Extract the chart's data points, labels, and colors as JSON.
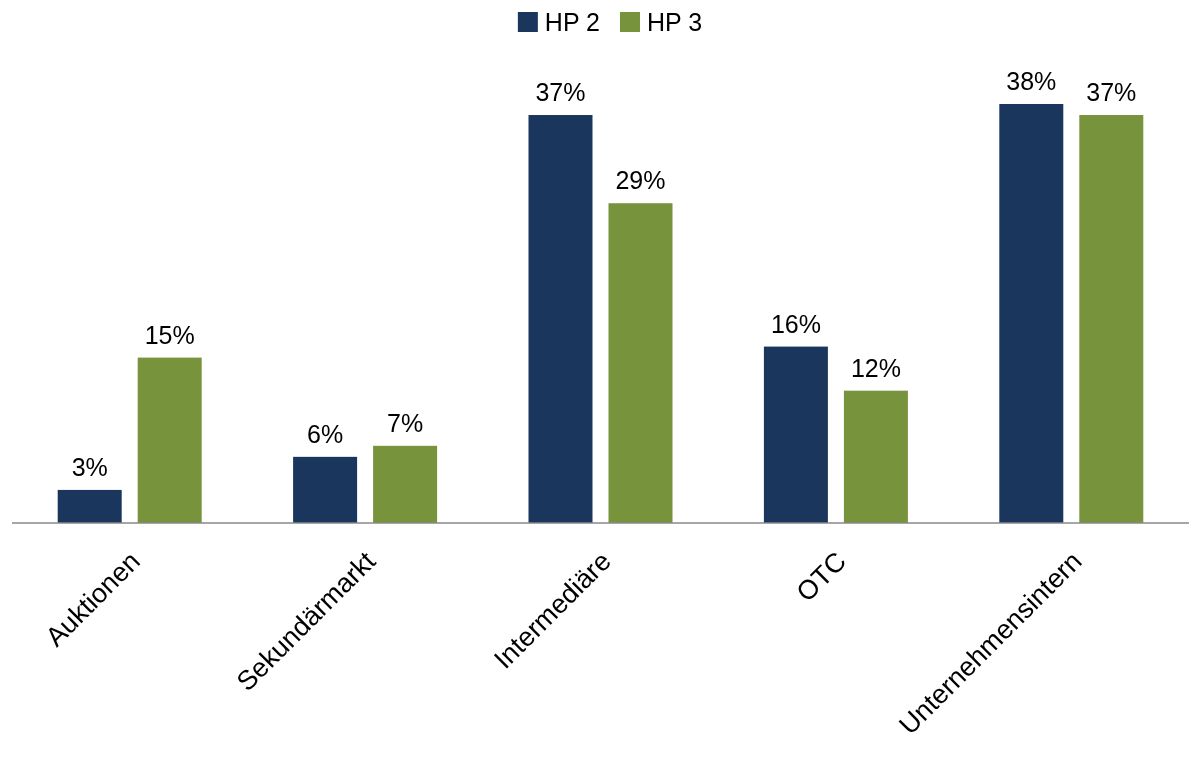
{
  "chart_data": {
    "type": "bar",
    "categories": [
      "Auktionen",
      "Sekundärmarkt",
      "Intermediäre",
      "OTC",
      "Unternehmensintern"
    ],
    "series": [
      {
        "name": "HP 2",
        "color": "#1b365d",
        "values": [
          3,
          6,
          37,
          16,
          38
        ],
        "value_labels": [
          "3%",
          "6%",
          "37%",
          "16%",
          "38%"
        ]
      },
      {
        "name": "HP 3",
        "color": "#77933c",
        "values": [
          15,
          7,
          29,
          12,
          37
        ],
        "value_labels": [
          "15%",
          "7%",
          "29%",
          "12%",
          "37%"
        ]
      }
    ],
    "legend": "top",
    "grid": false
  }
}
